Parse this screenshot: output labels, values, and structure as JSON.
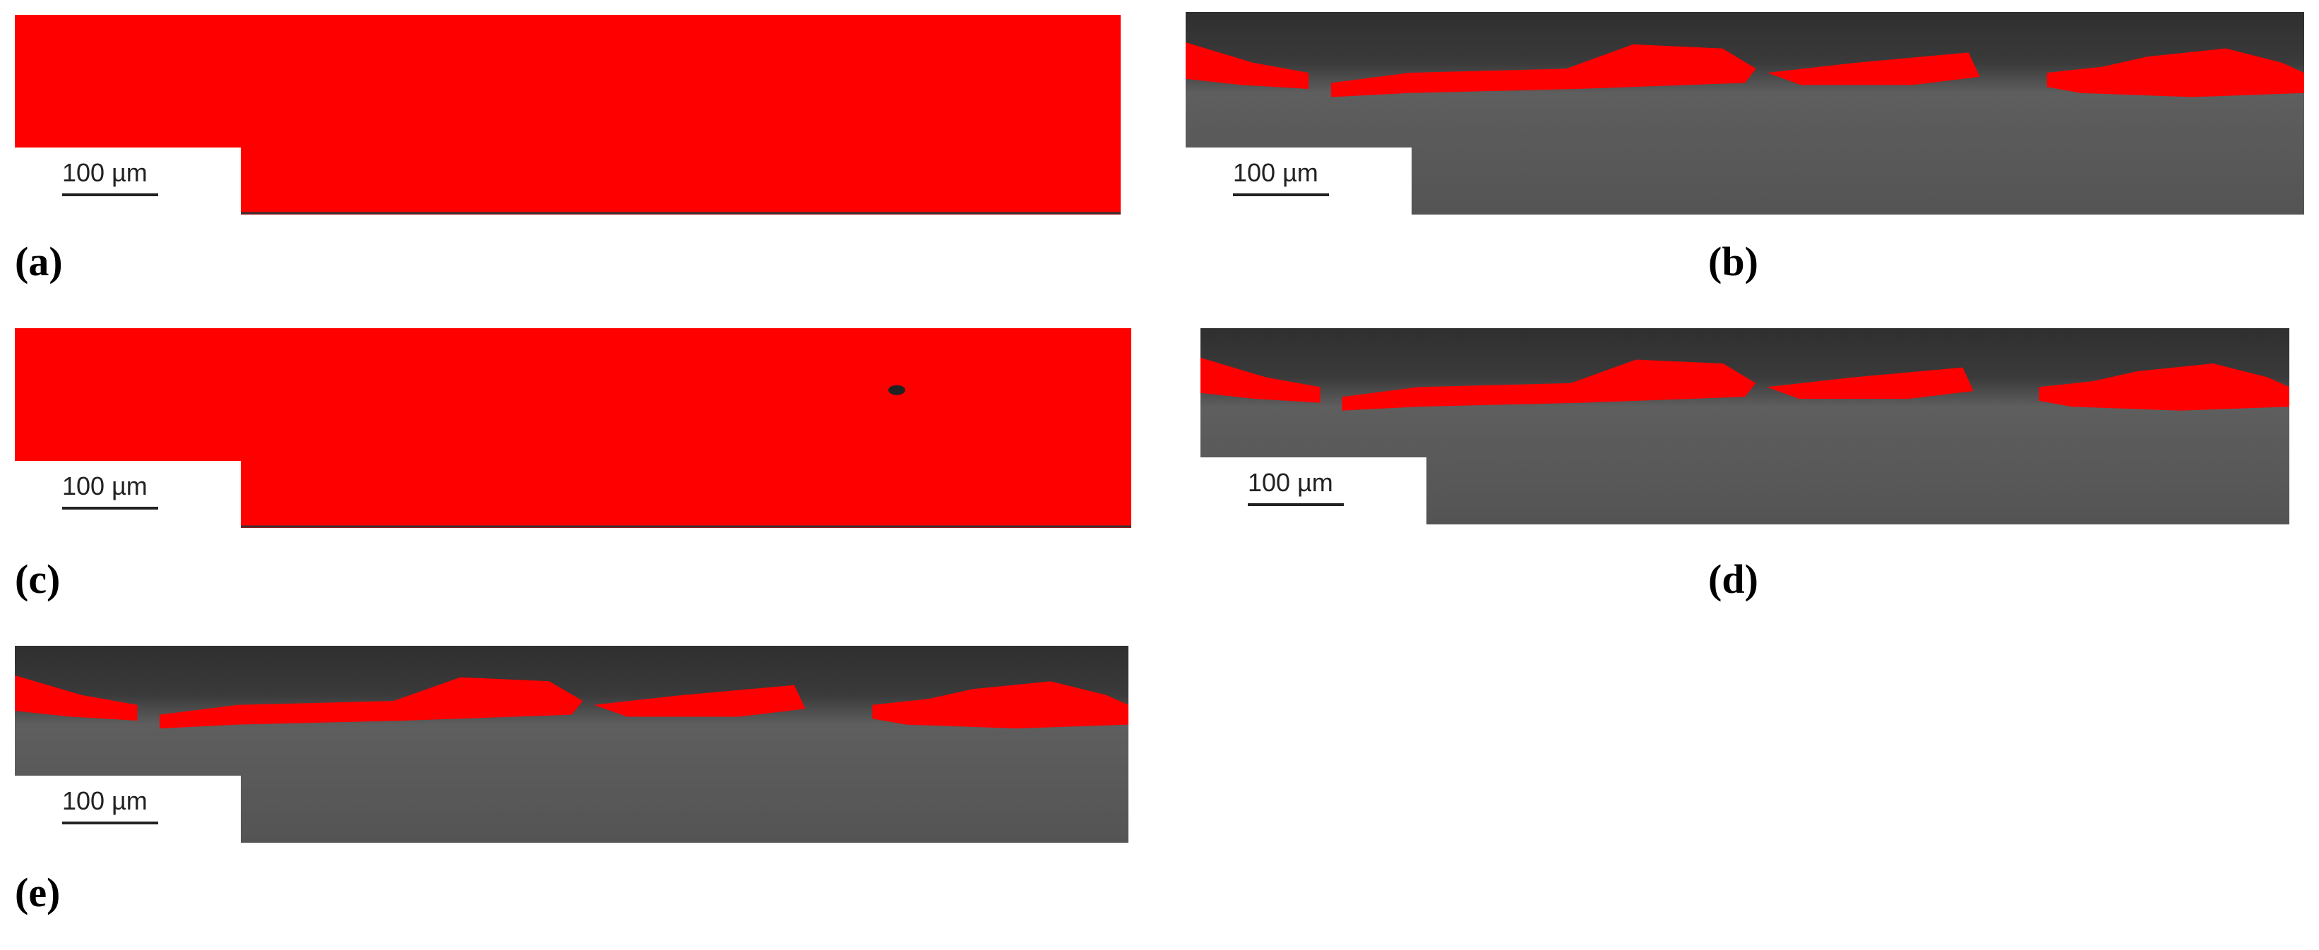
{
  "panels": [
    {
      "label": "(a)",
      "scale_bar": "100 µm"
    },
    {
      "label": "(b)",
      "scale_bar": "100 µm"
    },
    {
      "label": "(c)",
      "scale_bar": "100 µm"
    },
    {
      "label": "(d)",
      "scale_bar": "100 µm"
    },
    {
      "label": "(e)",
      "scale_bar": "100 µm"
    }
  ]
}
